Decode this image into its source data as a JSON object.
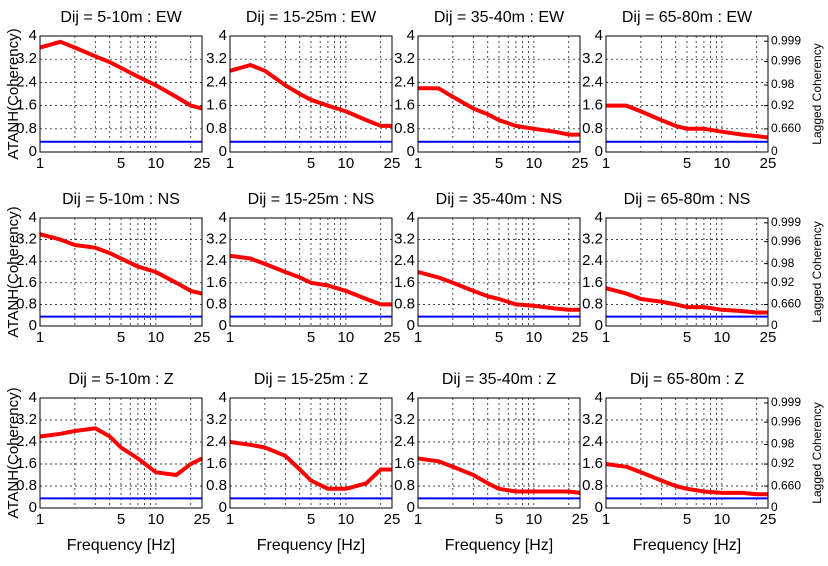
{
  "chart_data": [
    {
      "type": "line",
      "title": "Dij = 5-10m : EW",
      "ylabel": "ATANH(Coherency)",
      "x": [
        1,
        1.5,
        2,
        3,
        4,
        5,
        7,
        10,
        15,
        20,
        25
      ],
      "xscale": "log",
      "xlim": [
        1,
        25
      ],
      "xticks": [
        1,
        5,
        10,
        25
      ],
      "xminorticks": [
        2,
        3,
        4,
        6,
        7,
        8,
        9,
        20
      ],
      "ylim": [
        0,
        4
      ],
      "yticks": [
        0,
        0.8,
        1.6,
        2.4,
        3.2,
        4
      ],
      "grid": true,
      "series": [
        {
          "color": "#ff0000",
          "line_width": 4,
          "values": [
            3.6,
            3.8,
            3.6,
            3.3,
            3.1,
            2.9,
            2.6,
            2.3,
            1.9,
            1.6,
            1.5
          ]
        },
        {
          "color": "#0000ff",
          "line_width": 2,
          "values": [
            0.35,
            0.35,
            0.35,
            0.35,
            0.35,
            0.35,
            0.35,
            0.35,
            0.35,
            0.35,
            0.35
          ]
        }
      ]
    },
    {
      "type": "line",
      "title": "Dij = 15-25m : EW",
      "x": [
        1,
        1.5,
        2,
        3,
        4,
        5,
        7,
        10,
        15,
        20,
        25
      ],
      "xscale": "log",
      "xlim": [
        1,
        25
      ],
      "xticks": [
        1,
        5,
        10,
        25
      ],
      "xminorticks": [
        2,
        3,
        4,
        6,
        7,
        8,
        9,
        20
      ],
      "ylim": [
        0,
        4
      ],
      "yticks": [
        0,
        0.8,
        1.6,
        2.4,
        3.2,
        4
      ],
      "grid": true,
      "series": [
        {
          "color": "#ff0000",
          "line_width": 4,
          "values": [
            2.8,
            3.0,
            2.8,
            2.3,
            2.0,
            1.8,
            1.6,
            1.4,
            1.1,
            0.9,
            0.9
          ]
        },
        {
          "color": "#0000ff",
          "line_width": 2,
          "values": [
            0.35,
            0.35,
            0.35,
            0.35,
            0.35,
            0.35,
            0.35,
            0.35,
            0.35,
            0.35,
            0.35
          ]
        }
      ]
    },
    {
      "type": "line",
      "title": "Dij = 35-40m : EW",
      "x": [
        1,
        1.5,
        2,
        3,
        4,
        5,
        7,
        10,
        15,
        20,
        25
      ],
      "xscale": "log",
      "xlim": [
        1,
        25
      ],
      "xticks": [
        1,
        5,
        10,
        25
      ],
      "xminorticks": [
        2,
        3,
        4,
        6,
        7,
        8,
        9,
        20
      ],
      "ylim": [
        0,
        4
      ],
      "yticks": [
        0,
        0.8,
        1.6,
        2.4,
        3.2,
        4
      ],
      "grid": true,
      "series": [
        {
          "color": "#ff0000",
          "line_width": 4,
          "values": [
            2.2,
            2.2,
            1.9,
            1.5,
            1.3,
            1.1,
            0.9,
            0.8,
            0.7,
            0.6,
            0.6
          ]
        },
        {
          "color": "#0000ff",
          "line_width": 2,
          "values": [
            0.35,
            0.35,
            0.35,
            0.35,
            0.35,
            0.35,
            0.35,
            0.35,
            0.35,
            0.35,
            0.35
          ]
        }
      ]
    },
    {
      "type": "line",
      "title": "Dij = 65-80m : EW",
      "y2label": "Lagged Coherency",
      "x": [
        1,
        1.5,
        2,
        3,
        4,
        5,
        7,
        10,
        15,
        20,
        25
      ],
      "xscale": "log",
      "xlim": [
        1,
        25
      ],
      "xticks": [
        1,
        5,
        10,
        25
      ],
      "xminorticks": [
        2,
        3,
        4,
        6,
        7,
        8,
        9,
        20
      ],
      "ylim": [
        0,
        4
      ],
      "yticks": [
        0,
        0.8,
        1.6,
        2.4,
        3.2,
        4
      ],
      "y2scale": "atanh",
      "y2lim": [
        0,
        0.9993
      ],
      "y2ticks": [
        0,
        {
          "value": 0.66,
          "label": "0.660"
        },
        0.92,
        0.98,
        0.996,
        0.999
      ],
      "grid": true,
      "series": [
        {
          "color": "#ff0000",
          "line_width": 4,
          "values": [
            1.6,
            1.6,
            1.4,
            1.1,
            0.9,
            0.8,
            0.8,
            0.7,
            0.6,
            0.55,
            0.5
          ]
        },
        {
          "color": "#0000ff",
          "line_width": 2,
          "values": [
            0.35,
            0.35,
            0.35,
            0.35,
            0.35,
            0.35,
            0.35,
            0.35,
            0.35,
            0.35,
            0.35
          ]
        }
      ]
    },
    {
      "type": "line",
      "title": "Dij = 5-10m : NS",
      "ylabel": "ATANH(Coherency)",
      "x": [
        1,
        1.5,
        2,
        3,
        4,
        5,
        7,
        10,
        15,
        20,
        25
      ],
      "xscale": "log",
      "xlim": [
        1,
        25
      ],
      "xticks": [
        1,
        5,
        10,
        25
      ],
      "xminorticks": [
        2,
        3,
        4,
        6,
        7,
        8,
        9,
        20
      ],
      "ylim": [
        0,
        4
      ],
      "yticks": [
        0,
        0.8,
        1.6,
        2.4,
        3.2,
        4
      ],
      "grid": true,
      "series": [
        {
          "color": "#ff0000",
          "line_width": 4,
          "values": [
            3.4,
            3.2,
            3.0,
            2.9,
            2.7,
            2.5,
            2.2,
            2.0,
            1.6,
            1.3,
            1.2
          ]
        },
        {
          "color": "#0000ff",
          "line_width": 2,
          "values": [
            0.35,
            0.35,
            0.35,
            0.35,
            0.35,
            0.35,
            0.35,
            0.35,
            0.35,
            0.35,
            0.35
          ]
        }
      ]
    },
    {
      "type": "line",
      "title": "Dij = 15-25m : NS",
      "x": [
        1,
        1.5,
        2,
        3,
        4,
        5,
        7,
        10,
        15,
        20,
        25
      ],
      "xscale": "log",
      "xlim": [
        1,
        25
      ],
      "xticks": [
        1,
        5,
        10,
        25
      ],
      "xminorticks": [
        2,
        3,
        4,
        6,
        7,
        8,
        9,
        20
      ],
      "ylim": [
        0,
        4
      ],
      "yticks": [
        0,
        0.8,
        1.6,
        2.4,
        3.2,
        4
      ],
      "grid": true,
      "series": [
        {
          "color": "#ff0000",
          "line_width": 4,
          "values": [
            2.6,
            2.5,
            2.3,
            2.0,
            1.8,
            1.6,
            1.5,
            1.3,
            1.0,
            0.8,
            0.8
          ]
        },
        {
          "color": "#0000ff",
          "line_width": 2,
          "values": [
            0.35,
            0.35,
            0.35,
            0.35,
            0.35,
            0.35,
            0.35,
            0.35,
            0.35,
            0.35,
            0.35
          ]
        }
      ]
    },
    {
      "type": "line",
      "title": "Dij = 35-40m : NS",
      "x": [
        1,
        1.5,
        2,
        3,
        4,
        5,
        7,
        10,
        15,
        20,
        25
      ],
      "xscale": "log",
      "xlim": [
        1,
        25
      ],
      "xticks": [
        1,
        5,
        10,
        25
      ],
      "xminorticks": [
        2,
        3,
        4,
        6,
        7,
        8,
        9,
        20
      ],
      "ylim": [
        0,
        4
      ],
      "yticks": [
        0,
        0.8,
        1.6,
        2.4,
        3.2,
        4
      ],
      "grid": true,
      "series": [
        {
          "color": "#ff0000",
          "line_width": 4,
          "values": [
            2.0,
            1.8,
            1.6,
            1.3,
            1.1,
            1.0,
            0.8,
            0.75,
            0.65,
            0.6,
            0.6
          ]
        },
        {
          "color": "#0000ff",
          "line_width": 2,
          "values": [
            0.35,
            0.35,
            0.35,
            0.35,
            0.35,
            0.35,
            0.35,
            0.35,
            0.35,
            0.35,
            0.35
          ]
        }
      ]
    },
    {
      "type": "line",
      "title": "Dij = 65-80m : NS",
      "y2label": "Lagged Coherency",
      "x": [
        1,
        1.5,
        2,
        3,
        4,
        5,
        7,
        10,
        15,
        20,
        25
      ],
      "xscale": "log",
      "xlim": [
        1,
        25
      ],
      "xticks": [
        1,
        5,
        10,
        25
      ],
      "xminorticks": [
        2,
        3,
        4,
        6,
        7,
        8,
        9,
        20
      ],
      "ylim": [
        0,
        4
      ],
      "yticks": [
        0,
        0.8,
        1.6,
        2.4,
        3.2,
        4
      ],
      "y2scale": "atanh",
      "y2lim": [
        0,
        0.9993
      ],
      "y2ticks": [
        0,
        {
          "value": 0.66,
          "label": "0.660"
        },
        0.92,
        0.98,
        0.996,
        0.999
      ],
      "grid": true,
      "series": [
        {
          "color": "#ff0000",
          "line_width": 4,
          "values": [
            1.4,
            1.2,
            1.0,
            0.9,
            0.8,
            0.7,
            0.7,
            0.6,
            0.55,
            0.5,
            0.5
          ]
        },
        {
          "color": "#0000ff",
          "line_width": 2,
          "values": [
            0.35,
            0.35,
            0.35,
            0.35,
            0.35,
            0.35,
            0.35,
            0.35,
            0.35,
            0.35,
            0.35
          ]
        }
      ]
    },
    {
      "type": "line",
      "title": "Dij = 5-10m : Z",
      "ylabel": "ATANH(Coherency)",
      "xlabel": "Frequency [Hz]",
      "x": [
        1,
        1.5,
        2,
        3,
        4,
        5,
        7,
        10,
        15,
        20,
        25
      ],
      "xscale": "log",
      "xlim": [
        1,
        25
      ],
      "xticks": [
        1,
        5,
        10,
        25
      ],
      "xminorticks": [
        2,
        3,
        4,
        6,
        7,
        8,
        9,
        20
      ],
      "ylim": [
        0,
        4
      ],
      "yticks": [
        0,
        0.8,
        1.6,
        2.4,
        3.2,
        4
      ],
      "grid": true,
      "series": [
        {
          "color": "#ff0000",
          "line_width": 4,
          "values": [
            2.6,
            2.7,
            2.8,
            2.9,
            2.6,
            2.2,
            1.8,
            1.3,
            1.2,
            1.6,
            1.8
          ]
        },
        {
          "color": "#0000ff",
          "line_width": 2,
          "values": [
            0.35,
            0.35,
            0.35,
            0.35,
            0.35,
            0.35,
            0.35,
            0.35,
            0.35,
            0.35,
            0.35
          ]
        }
      ]
    },
    {
      "type": "line",
      "title": "Dij = 15-25m : Z",
      "xlabel": "Frequency [Hz]",
      "x": [
        1,
        1.5,
        2,
        3,
        4,
        5,
        7,
        10,
        15,
        20,
        25
      ],
      "xscale": "log",
      "xlim": [
        1,
        25
      ],
      "xticks": [
        1,
        5,
        10,
        25
      ],
      "xminorticks": [
        2,
        3,
        4,
        6,
        7,
        8,
        9,
        20
      ],
      "ylim": [
        0,
        4
      ],
      "yticks": [
        0,
        0.8,
        1.6,
        2.4,
        3.2,
        4
      ],
      "grid": true,
      "series": [
        {
          "color": "#ff0000",
          "line_width": 4,
          "values": [
            2.4,
            2.3,
            2.2,
            1.9,
            1.4,
            1.0,
            0.7,
            0.7,
            0.9,
            1.4,
            1.4
          ]
        },
        {
          "color": "#0000ff",
          "line_width": 2,
          "values": [
            0.35,
            0.35,
            0.35,
            0.35,
            0.35,
            0.35,
            0.35,
            0.35,
            0.35,
            0.35,
            0.35
          ]
        }
      ]
    },
    {
      "type": "line",
      "title": "Dij = 35-40m : Z",
      "xlabel": "Frequency [Hz]",
      "x": [
        1,
        1.5,
        2,
        3,
        4,
        5,
        7,
        10,
        15,
        20,
        25
      ],
      "xscale": "log",
      "xlim": [
        1,
        25
      ],
      "xticks": [
        1,
        5,
        10,
        25
      ],
      "xminorticks": [
        2,
        3,
        4,
        6,
        7,
        8,
        9,
        20
      ],
      "ylim": [
        0,
        4
      ],
      "yticks": [
        0,
        0.8,
        1.6,
        2.4,
        3.2,
        4
      ],
      "grid": true,
      "series": [
        {
          "color": "#ff0000",
          "line_width": 4,
          "values": [
            1.8,
            1.7,
            1.5,
            1.2,
            0.9,
            0.7,
            0.6,
            0.6,
            0.6,
            0.6,
            0.55
          ]
        },
        {
          "color": "#0000ff",
          "line_width": 2,
          "values": [
            0.35,
            0.35,
            0.35,
            0.35,
            0.35,
            0.35,
            0.35,
            0.35,
            0.35,
            0.35,
            0.35
          ]
        }
      ]
    },
    {
      "type": "line",
      "title": "Dij = 65-80m : Z",
      "xlabel": "Frequency [Hz]",
      "y2label": "Lagged Coherency",
      "x": [
        1,
        1.5,
        2,
        3,
        4,
        5,
        7,
        10,
        15,
        20,
        25
      ],
      "xscale": "log",
      "xlim": [
        1,
        25
      ],
      "xticks": [
        1,
        5,
        10,
        25
      ],
      "xminorticks": [
        2,
        3,
        4,
        6,
        7,
        8,
        9,
        20
      ],
      "ylim": [
        0,
        4
      ],
      "yticks": [
        0,
        0.8,
        1.6,
        2.4,
        3.2,
        4
      ],
      "y2scale": "atanh",
      "y2lim": [
        0,
        0.9993
      ],
      "y2ticks": [
        0,
        {
          "value": 0.66,
          "label": "0.660"
        },
        0.92,
        0.98,
        0.996,
        0.999
      ],
      "grid": true,
      "series": [
        {
          "color": "#ff0000",
          "line_width": 4,
          "values": [
            1.6,
            1.5,
            1.3,
            1.0,
            0.8,
            0.7,
            0.6,
            0.55,
            0.55,
            0.5,
            0.5
          ]
        },
        {
          "color": "#0000ff",
          "line_width": 2,
          "values": [
            0.35,
            0.35,
            0.35,
            0.35,
            0.35,
            0.35,
            0.35,
            0.35,
            0.35,
            0.35,
            0.35
          ]
        }
      ]
    }
  ]
}
